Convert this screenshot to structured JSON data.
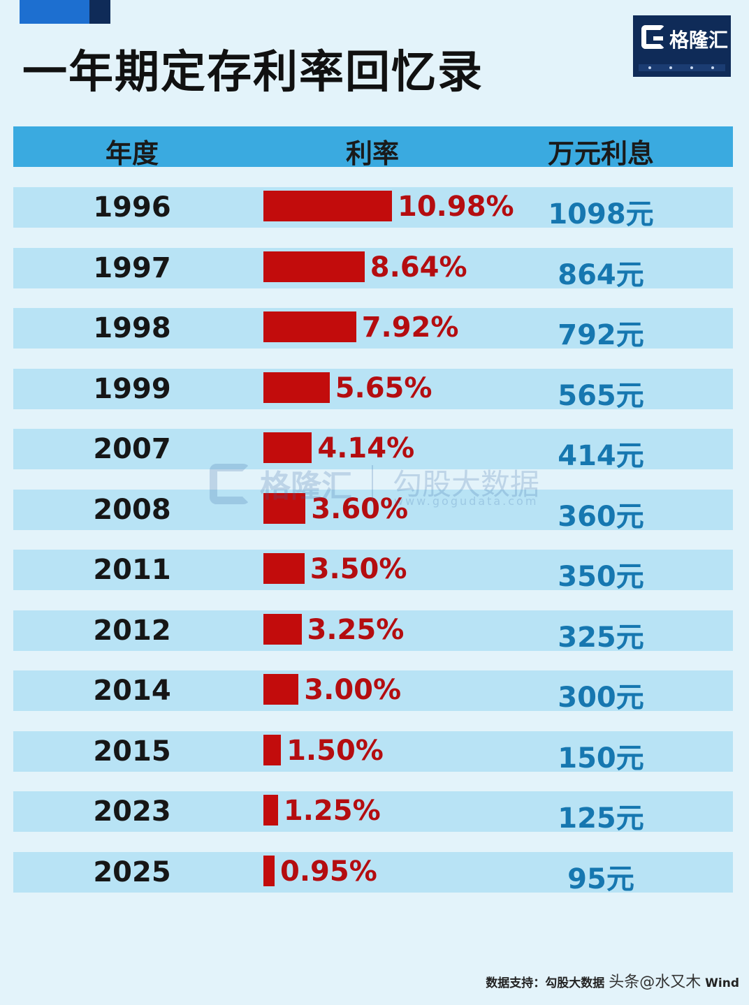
{
  "title": "一年期定存利率回忆录",
  "logo": {
    "text": "格隆汇",
    "icon": "g-logo-icon"
  },
  "table": {
    "headers": [
      "年度",
      "利率",
      "万元利息"
    ]
  },
  "watermark": {
    "brand": "格隆汇",
    "name": "勾股大数据",
    "url": "www.gogudata.com"
  },
  "footer": {
    "source": "数据支持：勾股大数据",
    "overlay": "头条@水又木",
    "tail": "Wind"
  },
  "colors": {
    "header_bg": "#3aaae0",
    "row_bg": "#b8e3f5",
    "bar": "#c20c0c",
    "rate_text": "#b40d10",
    "interest_text": "#1677b0",
    "logo_bg": "#0f2b58"
  },
  "chart_data": {
    "type": "bar",
    "title": "一年期定存利率回忆录",
    "xlabel": "利率",
    "ylabel": "年度",
    "categories": [
      "1996",
      "1997",
      "1998",
      "1999",
      "2007",
      "2008",
      "2011",
      "2012",
      "2014",
      "2015",
      "2023",
      "2025"
    ],
    "values": [
      10.98,
      8.64,
      7.92,
      5.65,
      4.14,
      3.6,
      3.5,
      3.25,
      3.0,
      1.5,
      1.25,
      0.95
    ],
    "rate_labels": [
      "10.98%",
      "8.64%",
      "7.92%",
      "5.65%",
      "4.14%",
      "3.60%",
      "3.50%",
      "3.25%",
      "3.00%",
      "1.50%",
      "1.25%",
      "0.95%"
    ],
    "interest_labels": [
      "1098元",
      "864元",
      "792元",
      "565元",
      "414元",
      "360元",
      "350元",
      "325元",
      "300元",
      "150元",
      "125元",
      "95元"
    ],
    "interest_values": [
      1098,
      864,
      792,
      565,
      414,
      360,
      350,
      325,
      300,
      150,
      125,
      95
    ],
    "orientation": "horizontal",
    "grid": false
  }
}
